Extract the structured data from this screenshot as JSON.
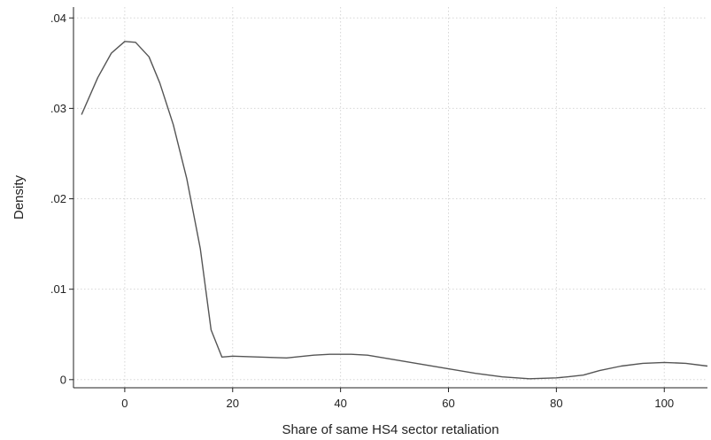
{
  "chart_data": {
    "type": "line",
    "title": "",
    "xlabel": "Share of same HS4 sector retaliation",
    "ylabel": "Density",
    "xlim": [
      -9.5,
      108
    ],
    "ylim": [
      -0.0009,
      0.0412
    ],
    "xticks": [
      0,
      20,
      40,
      60,
      80,
      100
    ],
    "xtick_labels": [
      "0",
      "20",
      "40",
      "60",
      "80",
      "100"
    ],
    "yticks": [
      0,
      0.01,
      0.02,
      0.03,
      0.04
    ],
    "ytick_labels": [
      "0",
      ".01",
      ".02",
      ".03",
      ".04"
    ],
    "grid": true,
    "legend": "none",
    "line_color": "#555555",
    "series": [
      {
        "x": [
          -8,
          -5,
          -2.5,
          0,
          2,
          4.5,
          6.5,
          9,
          11.5,
          14,
          16,
          18,
          20,
          25,
          30,
          35,
          38,
          42,
          45,
          50,
          55,
          60,
          65,
          70,
          75,
          80,
          82,
          85,
          88,
          92,
          96,
          100,
          104,
          108
        ],
        "y": [
          0.0293,
          0.0334,
          0.0361,
          0.0374,
          0.0373,
          0.0357,
          0.0328,
          0.0282,
          0.0222,
          0.0145,
          0.0055,
          0.0025,
          0.0026,
          0.0025,
          0.0024,
          0.0027,
          0.0028,
          0.0028,
          0.0027,
          0.0022,
          0.0017,
          0.0012,
          0.0007,
          0.0003,
          0.0001,
          0.0002,
          0.0003,
          0.0005,
          0.001,
          0.0015,
          0.0018,
          0.0019,
          0.0018,
          0.0015
        ]
      }
    ]
  }
}
